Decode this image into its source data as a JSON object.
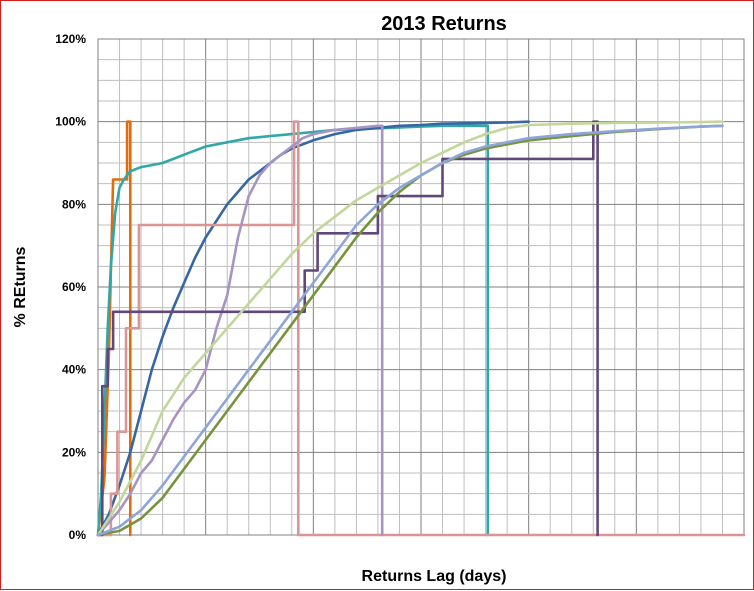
{
  "chart_data": {
    "type": "line",
    "title": "2013 Returns",
    "xlabel": "Returns Lag (days)",
    "ylabel": "% REturns",
    "xlim": [
      0,
      30
    ],
    "ylim": [
      0,
      120
    ],
    "y_ticks": [
      "0%",
      "20%",
      "40%",
      "60%",
      "80%",
      "100%",
      "120%"
    ],
    "grid": true,
    "legend": "none",
    "series": [
      {
        "color": "#e36c0a",
        "x": [
          0,
          0.3,
          0.5,
          0.7,
          1,
          1.35,
          1.35,
          1.5,
          1.5
        ],
        "y": [
          0,
          14,
          43,
          86,
          86,
          86,
          100,
          100,
          0
        ]
      },
      {
        "color": "#31a7a7",
        "x": [
          0,
          0.15,
          0.3,
          0.45,
          0.6,
          0.8,
          1,
          1.2,
          1.5,
          2,
          2.5,
          3,
          3.5,
          4,
          5,
          6,
          7,
          8,
          9,
          10,
          11,
          12,
          13,
          14,
          15,
          16,
          17,
          18,
          18.1,
          18.1
        ],
        "y": [
          0,
          10,
          30,
          50,
          65,
          78,
          84,
          86,
          88,
          89,
          89.5,
          90,
          91,
          92,
          94,
          95,
          96,
          96.5,
          97,
          97.5,
          98,
          98.2,
          98.4,
          98.6,
          98.8,
          99,
          99,
          99,
          99,
          0
        ]
      },
      {
        "color": "#3767a3",
        "x": [
          0,
          0.5,
          1,
          1.5,
          2,
          2.5,
          3,
          3.5,
          4,
          4.5,
          5,
          5.5,
          6,
          6.5,
          7,
          7.5,
          8,
          8.5,
          9,
          10,
          11,
          12,
          13,
          14,
          15,
          16,
          17,
          18,
          19,
          20
        ],
        "y": [
          0,
          5,
          12,
          20,
          30,
          40,
          48,
          55,
          61,
          67,
          72,
          76,
          80,
          83,
          86,
          88,
          90,
          92,
          93.5,
          95.5,
          97,
          98,
          98.5,
          99,
          99.2,
          99.5,
          99.6,
          99.7,
          99.8,
          100
        ]
      },
      {
        "color": "#d99694",
        "x": [
          0,
          0.6,
          0.6,
          0.9,
          0.9,
          1.3,
          1.3,
          1.9,
          1.9,
          2.3,
          2.3,
          9.1,
          9.1,
          9.3,
          9.3,
          30
        ],
        "y": [
          0,
          0,
          10,
          10,
          25,
          25,
          50,
          50,
          75,
          75,
          75,
          75,
          100,
          100,
          0,
          0
        ]
      },
      {
        "color": "#a694c2",
        "x": [
          0,
          1,
          1.5,
          2,
          2.5,
          3,
          3.5,
          4,
          4.5,
          5,
          5.5,
          6,
          6.5,
          7,
          7.5,
          8,
          8.5,
          9,
          9.5,
          10,
          11,
          12,
          13,
          13.2,
          13.2
        ],
        "y": [
          0,
          6,
          10,
          15,
          18,
          23,
          28,
          32,
          35,
          40,
          50,
          58,
          72,
          82,
          87,
          90,
          92,
          94,
          96,
          97,
          98,
          98.5,
          99,
          99,
          0
        ]
      },
      {
        "color": "#60497a",
        "x": [
          0,
          0.2,
          0.2,
          0.45,
          0.45,
          0.7,
          0.7,
          0.85,
          0.85,
          9.6,
          9.6,
          10.2,
          10.2,
          13,
          13,
          16,
          16,
          23,
          23,
          23.2,
          23.2
        ],
        "y": [
          0,
          0,
          36,
          36,
          45,
          45,
          54,
          54,
          54,
          54,
          64,
          64,
          73,
          73,
          82,
          82,
          91,
          91,
          100,
          100,
          0
        ]
      },
      {
        "color": "#c3d69b",
        "x": [
          0,
          1,
          2,
          3,
          4,
          5,
          6,
          7,
          8,
          9,
          10,
          11,
          12,
          13,
          14,
          15,
          16,
          17,
          18,
          19,
          20,
          22,
          24,
          26,
          28,
          29
        ],
        "y": [
          0,
          8,
          18,
          30,
          38,
          44,
          50,
          56,
          62,
          68,
          73,
          77,
          81,
          84,
          87,
          90,
          92.5,
          95,
          97,
          98.5,
          99.2,
          99.5,
          99.7,
          99.8,
          99.9,
          100
        ]
      },
      {
        "color": "#77933c",
        "x": [
          0,
          1,
          2,
          3,
          4,
          5,
          6,
          7,
          8,
          9,
          10,
          11,
          12,
          13,
          14,
          15,
          16,
          17,
          18,
          19,
          20,
          22,
          24,
          26,
          28,
          29
        ],
        "y": [
          0,
          1,
          4,
          9,
          16,
          23,
          30,
          37,
          44,
          51,
          58,
          65,
          72,
          78,
          83,
          87,
          90,
          92,
          93.5,
          94.5,
          95.5,
          96.5,
          97.5,
          98.2,
          98.8,
          99
        ]
      },
      {
        "color": "#8ea5d9",
        "x": [
          0,
          1,
          2,
          3,
          4,
          5,
          6,
          7,
          8,
          9,
          10,
          11,
          12,
          13,
          14,
          15,
          16,
          17,
          18,
          19,
          20,
          22,
          24,
          26,
          28,
          29
        ],
        "y": [
          0,
          2,
          6,
          12,
          19,
          26,
          33,
          40,
          47,
          54,
          61,
          68,
          75,
          80,
          84,
          87,
          90,
          92.5,
          94,
          95,
          96,
          97,
          97.7,
          98.3,
          98.8,
          99
        ]
      }
    ]
  }
}
